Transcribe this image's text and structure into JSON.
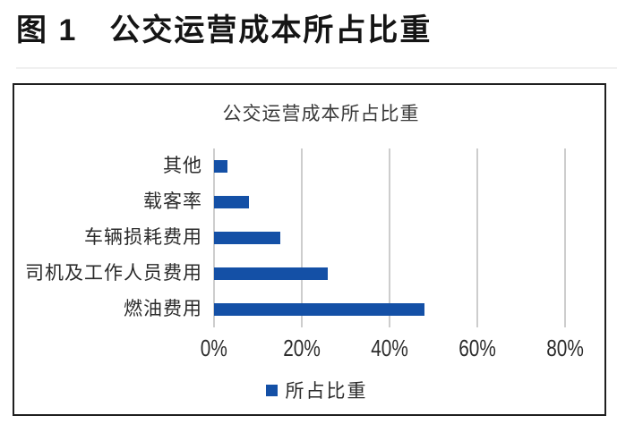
{
  "figure": {
    "label": "图 1",
    "title": "公交运营成本所占比重"
  },
  "chart_data": {
    "type": "bar",
    "orientation": "horizontal",
    "title": "公交运营成本所占比重",
    "categories_top_to_bottom": [
      "其他",
      "载客率",
      "车辆损耗费用",
      "司机及工作人员费用",
      "燃油费用"
    ],
    "values_percent": [
      3,
      8,
      15,
      26,
      48
    ],
    "xlim": [
      0,
      80
    ],
    "x_ticks": [
      "0%",
      "20%",
      "40%",
      "60%",
      "80%"
    ],
    "grid": true,
    "bar_color": "#1450a6",
    "legend_position": "bottom",
    "legend": [
      {
        "label": "所占比重",
        "color": "#1450a6"
      }
    ]
  }
}
